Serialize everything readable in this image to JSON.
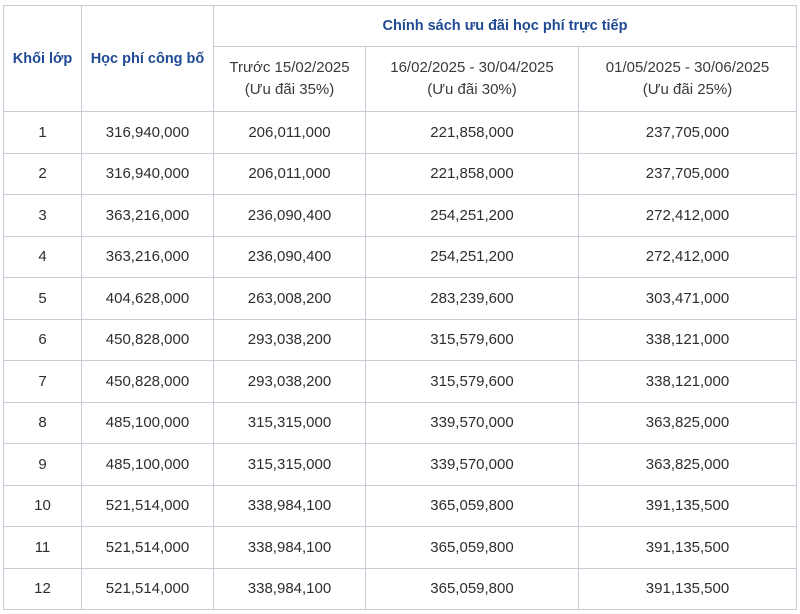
{
  "table": {
    "header": {
      "grade": "Khối lớp",
      "published_fee": "Học phí công bố",
      "policy": "Chính sách ưu đãi học phí trực tiếp",
      "periods": [
        {
          "dates": "Trước 15/02/2025",
          "discount": "(Ưu đãi 35%)"
        },
        {
          "dates": "16/02/2025 - 30/04/2025",
          "discount": "(Ưu đãi 30%)"
        },
        {
          "dates": "01/05/2025 - 30/06/2025",
          "discount": "(Ưu đãi 25%)"
        }
      ]
    },
    "rows": [
      [
        "1",
        "316,940,000",
        "206,011,000",
        "221,858,000",
        "237,705,000"
      ],
      [
        "2",
        "316,940,000",
        "206,011,000",
        "221,858,000",
        "237,705,000"
      ],
      [
        "3",
        "363,216,000",
        "236,090,400",
        "254,251,200",
        "272,412,000"
      ],
      [
        "4",
        "363,216,000",
        "236,090,400",
        "254,251,200",
        "272,412,000"
      ],
      [
        "5",
        "404,628,000",
        "263,008,200",
        "283,239,600",
        "303,471,000"
      ],
      [
        "6",
        "450,828,000",
        "293,038,200",
        "315,579,600",
        "338,121,000"
      ],
      [
        "7",
        "450,828,000",
        "293,038,200",
        "315,579,600",
        "338,121,000"
      ],
      [
        "8",
        "485,100,000",
        "315,315,000",
        "339,570,000",
        "363,825,000"
      ],
      [
        "9",
        "485,100,000",
        "315,315,000",
        "339,570,000",
        "363,825,000"
      ],
      [
        "10",
        "521,514,000",
        "338,984,100",
        "365,059,800",
        "391,135,500"
      ],
      [
        "11",
        "521,514,000",
        "338,984,100",
        "365,059,800",
        "391,135,500"
      ],
      [
        "12",
        "521,514,000",
        "338,984,100",
        "365,059,800",
        "391,135,500"
      ]
    ]
  }
}
